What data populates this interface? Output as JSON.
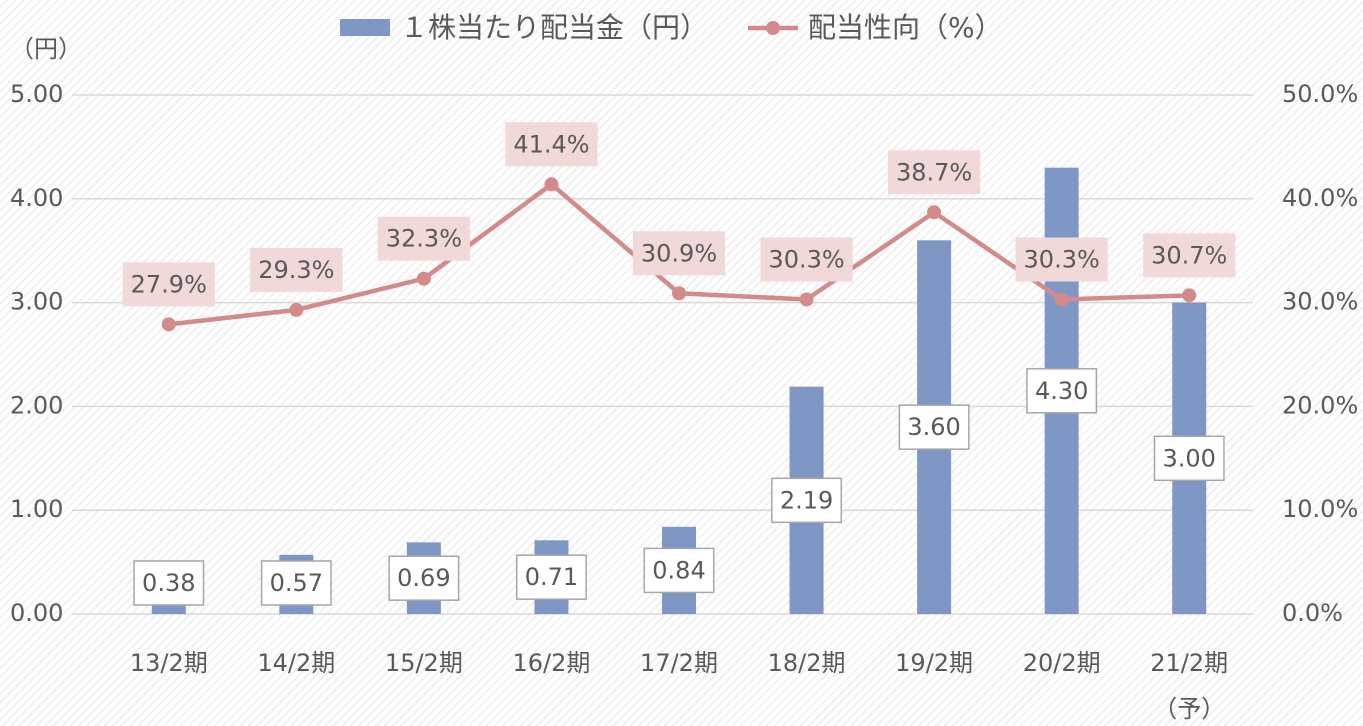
{
  "chart_data": {
    "type": "bar_line",
    "y_axis_label": "（円）",
    "categories": [
      "13/2期",
      "14/2期",
      "15/2期",
      "16/2期",
      "17/2期",
      "18/2期",
      "19/2期",
      "20/2期",
      "21/2期"
    ],
    "forecast_note": "（予）",
    "series": [
      {
        "name": "１株当たり配当金（円）",
        "type": "bar",
        "color": "#7f97c4",
        "values": [
          0.38,
          0.57,
          0.69,
          0.71,
          0.84,
          2.19,
          3.6,
          4.3,
          3.0
        ],
        "value_labels": [
          "0.38",
          "0.57",
          "0.69",
          "0.71",
          "0.84",
          "2.19",
          "3.60",
          "4.30",
          "3.00"
        ]
      },
      {
        "name": "配当性向（%）",
        "type": "line",
        "axis": "y2",
        "color": "#d28a8a",
        "values": [
          27.9,
          29.3,
          32.3,
          41.4,
          30.9,
          30.3,
          38.7,
          30.3,
          30.7
        ],
        "value_labels": [
          "27.9%",
          "29.3%",
          "32.3%",
          "41.4%",
          "30.9%",
          "30.3%",
          "38.7%",
          "30.3%",
          "30.7%"
        ]
      }
    ],
    "ylim": [
      0,
      5
    ],
    "yticks": [
      {
        "value": 0,
        "label": "0.00"
      },
      {
        "value": 1,
        "label": "1.00"
      },
      {
        "value": 2,
        "label": "2.00"
      },
      {
        "value": 3,
        "label": "3.00"
      },
      {
        "value": 4,
        "label": "4.00"
      },
      {
        "value": 5,
        "label": "5.00"
      }
    ],
    "y2lim": [
      0,
      50
    ],
    "y2ticks": [
      {
        "value": 0,
        "label": "0.0%"
      },
      {
        "value": 10,
        "label": "10.0%"
      },
      {
        "value": 20,
        "label": "20.0%"
      },
      {
        "value": 30,
        "label": "30.0%"
      },
      {
        "value": 40,
        "label": "40.0%"
      },
      {
        "value": 50,
        "label": "50.0%"
      }
    ],
    "grid": true
  }
}
